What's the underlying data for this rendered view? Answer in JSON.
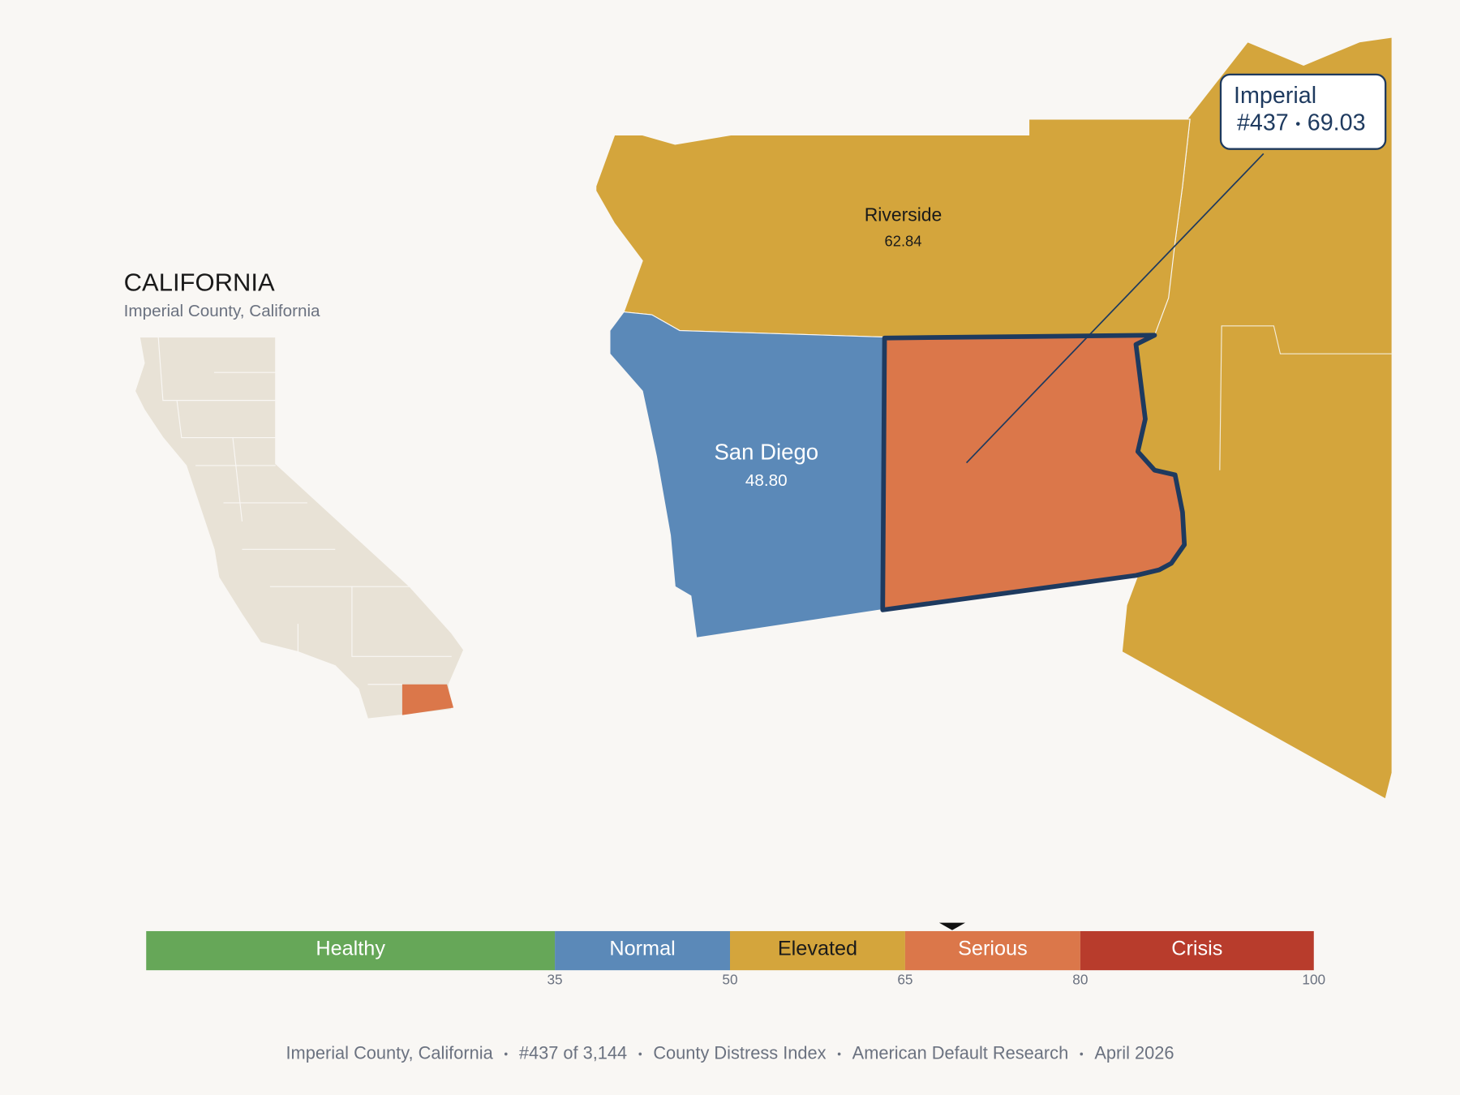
{
  "inset": {
    "title": "CALIFORNIA",
    "subtitle": "Imperial County, California"
  },
  "counties": [
    {
      "name": "Riverside",
      "score": 62.84
    },
    {
      "name": "San Diego",
      "score": 48.8,
      "score_label": "48.80"
    },
    {
      "name": "Imperial",
      "score": 69.03,
      "rank": "#437"
    }
  ],
  "legend": {
    "lim": [
      0,
      100
    ],
    "ticks": [
      35,
      50,
      65,
      80,
      100
    ],
    "bands": [
      {
        "label": "Healthy",
        "color": "#66a758"
      },
      {
        "label": "Normal",
        "color": "#5b89b8"
      },
      {
        "label": "Elevated",
        "color": "#d4a53c"
      },
      {
        "label": "Serious",
        "color": "#db774a"
      },
      {
        "label": "Crisis",
        "color": "#b83c2c"
      }
    ]
  },
  "footer": [
    "Imperial County, California",
    "#437 of 3,144",
    "County Distress Index",
    "American Default Research",
    "April 2026"
  ]
}
